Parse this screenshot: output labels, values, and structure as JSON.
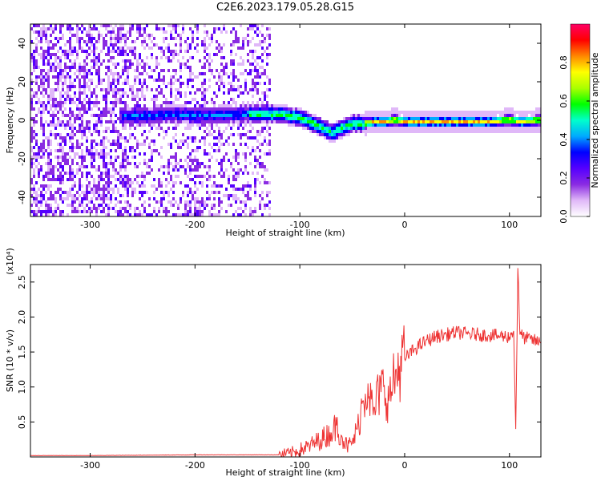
{
  "title": "C2E6.2023.179.05.28.G15",
  "chart_data": [
    {
      "type": "heatmap",
      "xlabel": "Height of straight line (km)",
      "ylabel": "Frequency (Hz)",
      "xlim": [
        -357,
        130
      ],
      "ylim": [
        -50,
        50
      ],
      "xticks": [
        -300,
        -200,
        -100,
        0,
        100
      ],
      "xtick_labels": [
        "-300",
        "-200",
        "-100",
        "0",
        "100"
      ],
      "yticks": [
        -40,
        -20,
        0,
        20,
        40
      ],
      "ytick_labels": [
        "-40",
        "-20",
        "0",
        "20",
        "40"
      ],
      "colorbar": {
        "label": "Normalized spectral amplitude",
        "range": [
          0,
          1
        ],
        "ticks": [
          0.0,
          0.2,
          0.4,
          0.6,
          0.8
        ],
        "tick_labels": [
          "0.0",
          "0.2",
          "0.4",
          "0.6",
          "0.8"
        ],
        "colormap": [
          "#ffffff",
          "#e0b8f8",
          "#8a2be2",
          "#5500ff",
          "#0000ff",
          "#00aaff",
          "#00ffcc",
          "#00ff00",
          "#aaff00",
          "#ffff00",
          "#ff8800",
          "#ff0000",
          "#ff0066"
        ]
      },
      "ridge": {
        "x": [
          -265,
          -250,
          -220,
          -200,
          -150,
          -120,
          -100,
          -80,
          -70,
          -60,
          -50,
          -40,
          -30,
          -20,
          -10,
          0,
          20,
          50,
          80,
          100,
          110,
          130
        ],
        "y": [
          3,
          3,
          4,
          3,
          4,
          4,
          2,
          -3,
          -6,
          -3,
          -1,
          -1,
          0,
          0,
          1,
          0,
          0,
          0,
          0,
          1,
          0,
          1
        ]
      }
    },
    {
      "type": "line",
      "xlabel": "Height of straight line (km)",
      "ylabel": "SNR (10 * v/v)",
      "y_multiplier": "(x10⁴)",
      "xlim": [
        -357,
        130
      ],
      "ylim": [
        0,
        2.75
      ],
      "xticks": [
        -300,
        -200,
        -100,
        0,
        100
      ],
      "xtick_labels": [
        "-300",
        "-200",
        "-100",
        "0",
        "100"
      ],
      "yticks": [
        0.5,
        1.0,
        1.5,
        2.0,
        2.5
      ],
      "ytick_labels": [
        "0.5",
        "1.0",
        "1.5",
        "2.0",
        "2.5"
      ],
      "line_color": "#ee3333",
      "series": [
        {
          "x": [
            -357,
            -300,
            -200,
            -150,
            -120,
            -110,
            -100,
            -90,
            -80,
            -70,
            -65,
            -60,
            -55,
            -50,
            -45,
            -40,
            -35,
            -30,
            -25,
            -20,
            -15,
            -10,
            -5,
            0,
            10,
            20,
            30,
            40,
            50,
            60,
            70,
            80,
            90,
            100,
            104,
            106,
            108,
            110,
            115,
            120,
            130
          ],
          "y": [
            0.02,
            0.02,
            0.03,
            0.03,
            0.03,
            0.05,
            0.1,
            0.16,
            0.25,
            0.35,
            0.45,
            0.3,
            0.15,
            0.2,
            0.4,
            0.8,
            1.05,
            0.6,
            0.9,
            1.0,
            0.8,
            1.1,
            1.3,
            1.4,
            1.55,
            1.65,
            1.72,
            1.75,
            1.78,
            1.76,
            1.75,
            1.74,
            1.73,
            1.72,
            1.8,
            0.4,
            2.7,
            1.75,
            1.7,
            1.68,
            1.63
          ]
        }
      ]
    }
  ]
}
